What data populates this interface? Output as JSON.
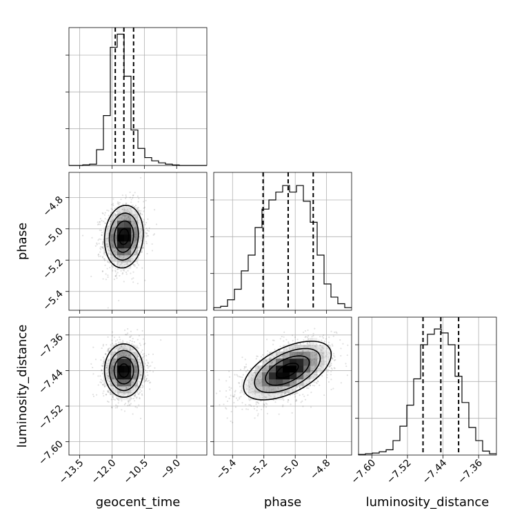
{
  "chart_data": {
    "type": "corner",
    "parameters": [
      "geocent_time",
      "phase",
      "luminosity_distance"
    ],
    "axis_labels": [
      "geocent_time",
      "phase",
      "luminosity_distance"
    ],
    "ticks": {
      "geocent_time": [
        "−13.5",
        "−12.0",
        "−10.5",
        "−9.0"
      ],
      "phase": [
        "−5.4",
        "−5.2",
        "−5.0",
        "−4.8"
      ],
      "luminosity_distance": [
        "−7.60",
        "−7.52",
        "−7.44",
        "−7.36"
      ]
    },
    "tick_values": {
      "geocent_time": [
        -13.5,
        -12.0,
        -10.5,
        -9.0
      ],
      "phase": [
        -5.4,
        -5.2,
        -5.0,
        -4.8
      ],
      "luminosity_distance": [
        -7.6,
        -7.52,
        -7.44,
        -7.36
      ]
    },
    "ranges": {
      "geocent_time": [
        -14.0,
        -7.6
      ],
      "phase": [
        -5.52,
        -4.64
      ],
      "luminosity_distance": [
        -7.63,
        -7.32
      ]
    },
    "marginals": [
      {
        "parameter": "geocent_time",
        "bin_edges": [
          -14.0,
          -13.68,
          -13.36,
          -13.04,
          -12.72,
          -12.4,
          -12.08,
          -11.76,
          -11.44,
          -11.12,
          -10.8,
          -10.48,
          -10.16,
          -9.84,
          -9.52,
          -9.2,
          -8.88,
          -8.56,
          -8.24,
          -7.92,
          -7.6
        ],
        "counts": [
          0,
          0,
          0.005,
          0.01,
          0.12,
          0.38,
          0.9,
          1.0,
          0.68,
          0.27,
          0.13,
          0.06,
          0.035,
          0.02,
          0.01,
          0.004,
          0,
          0,
          0,
          0
        ],
        "quantiles": [
          -11.85,
          -11.45,
          -11.0
        ]
      },
      {
        "parameter": "phase",
        "bin_edges": [
          -5.52,
          -5.476,
          -5.432,
          -5.388,
          -5.344,
          -5.3,
          -5.256,
          -5.212,
          -5.168,
          -5.124,
          -5.08,
          -5.036,
          -4.992,
          -4.948,
          -4.904,
          -4.86,
          -4.816,
          -4.772,
          -4.728,
          -4.684,
          -4.64
        ],
        "counts": [
          0.02,
          0.03,
          0.08,
          0.16,
          0.3,
          0.42,
          0.63,
          0.77,
          0.84,
          0.9,
          0.95,
          0.9,
          0.95,
          0.83,
          0.67,
          0.42,
          0.2,
          0.1,
          0.05,
          0.02
        ],
        "quantiles": [
          -5.205,
          -5.045,
          -4.885
        ]
      },
      {
        "parameter": "luminosity_distance",
        "bin_edges": [
          -7.63,
          -7.6145,
          -7.599,
          -7.5835,
          -7.568,
          -7.5525,
          -7.537,
          -7.5215,
          -7.506,
          -7.4905,
          -7.475,
          -7.4595,
          -7.444,
          -7.4285,
          -7.413,
          -7.3975,
          -7.382,
          -7.3665,
          -7.351,
          -7.3355,
          -7.32
        ],
        "counts": [
          0.005,
          0.01,
          0.015,
          0.025,
          0.04,
          0.11,
          0.22,
          0.38,
          0.58,
          0.84,
          0.92,
          0.96,
          0.93,
          0.84,
          0.6,
          0.4,
          0.21,
          0.11,
          0.03,
          0.01
        ],
        "quantiles": [
          -7.485,
          -7.445,
          -7.405
        ]
      }
    ],
    "joint": [
      {
        "x": "geocent_time",
        "y": "phase",
        "mean": [
          -11.45,
          -5.05
        ],
        "sd": [
          0.45,
          0.1
        ],
        "rho": 0.1
      },
      {
        "x": "geocent_time",
        "y": "luminosity_distance",
        "mean": [
          -11.45,
          -7.44
        ],
        "sd": [
          0.45,
          0.03
        ],
        "rho": 0.0
      },
      {
        "x": "phase",
        "y": "luminosity_distance",
        "mean": [
          -5.05,
          -7.44
        ],
        "sd": [
          0.14,
          0.033
        ],
        "rho": 0.55
      }
    ],
    "contour_levels_sigma": [
      0.5,
      1.0,
      1.5,
      2.0
    ],
    "grid": true
  }
}
